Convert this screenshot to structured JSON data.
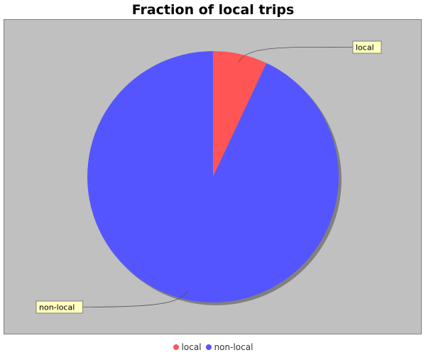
{
  "chart_data": {
    "type": "pie",
    "title": "Fraction of local trips",
    "slices": [
      {
        "label": "local",
        "value": 7,
        "color": "#ff5555"
      },
      {
        "label": "non-local",
        "value": 93,
        "color": "#5555ff"
      }
    ],
    "background": "#c0c0c0",
    "legend_position": "bottom"
  },
  "legend": {
    "items": [
      {
        "label": "local",
        "color": "#ff5555"
      },
      {
        "label": "non-local",
        "color": "#5555ff"
      }
    ]
  }
}
